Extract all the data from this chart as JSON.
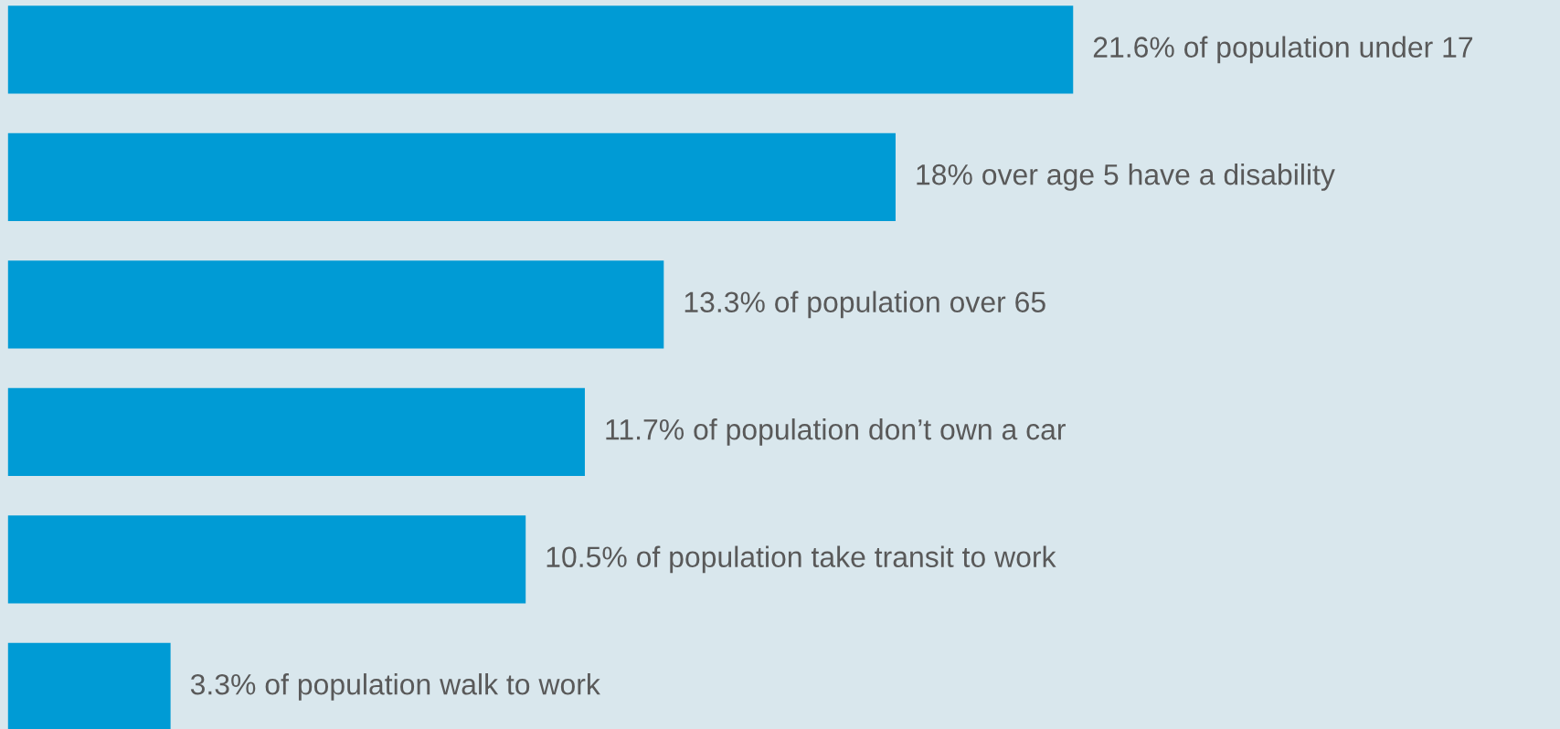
{
  "chart_data": {
    "type": "bar",
    "orientation": "horizontal",
    "categories": [
      null,
      null,
      null,
      null,
      null,
      null
    ],
    "values": [
      21.6,
      18,
      13.3,
      11.7,
      10.5,
      3.3
    ],
    "color": "#009bd5",
    "value_labels": [
      "21.6% of population under 17",
      "18% over age 5 have a disability",
      "13.3% of population over 65",
      "11.7% of population don’t own a car",
      "10.5% of population take transit to work",
      "3.3% of population walk to work"
    ]
  }
}
